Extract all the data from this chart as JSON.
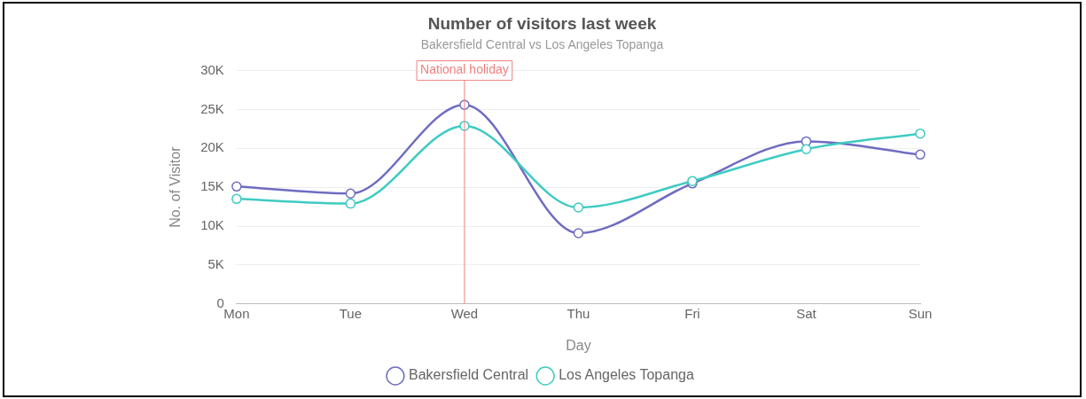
{
  "chart_data": {
    "type": "line",
    "title": "Number of visitors last week",
    "subtitle": "Bakersfield Central vs Los Angeles Topanga",
    "xlabel": "Day",
    "ylabel": "No. of Visitor",
    "categories": [
      "Mon",
      "Tue",
      "Wed",
      "Thu",
      "Fri",
      "Sat",
      "Sun"
    ],
    "series": [
      {
        "name": "Bakersfield Central",
        "color": "#6f6cc0",
        "values": [
          15100,
          14200,
          25600,
          9100,
          15500,
          20900,
          19200
        ]
      },
      {
        "name": "Los Angeles Topanga",
        "color": "#3ecbc2",
        "values": [
          13500,
          12900,
          22900,
          12400,
          15800,
          19900,
          21900
        ]
      }
    ],
    "ylim": [
      0,
      30000
    ],
    "yticks": [
      0,
      {
        "value": 5000,
        "label": "5K"
      },
      {
        "value": 10000,
        "label": "10K"
      },
      {
        "value": 15000,
        "label": "15K"
      },
      {
        "value": 20000,
        "label": "20K"
      },
      {
        "value": 25000,
        "label": "25K"
      },
      {
        "value": 30000,
        "label": "30K"
      }
    ],
    "grid": "y",
    "legend": "bottom",
    "marker": "circle",
    "line_style": "solid",
    "ref_lines": [
      {
        "axis": "x",
        "value": "Wed",
        "label": "National holiday",
        "color": "#f08080"
      }
    ]
  }
}
